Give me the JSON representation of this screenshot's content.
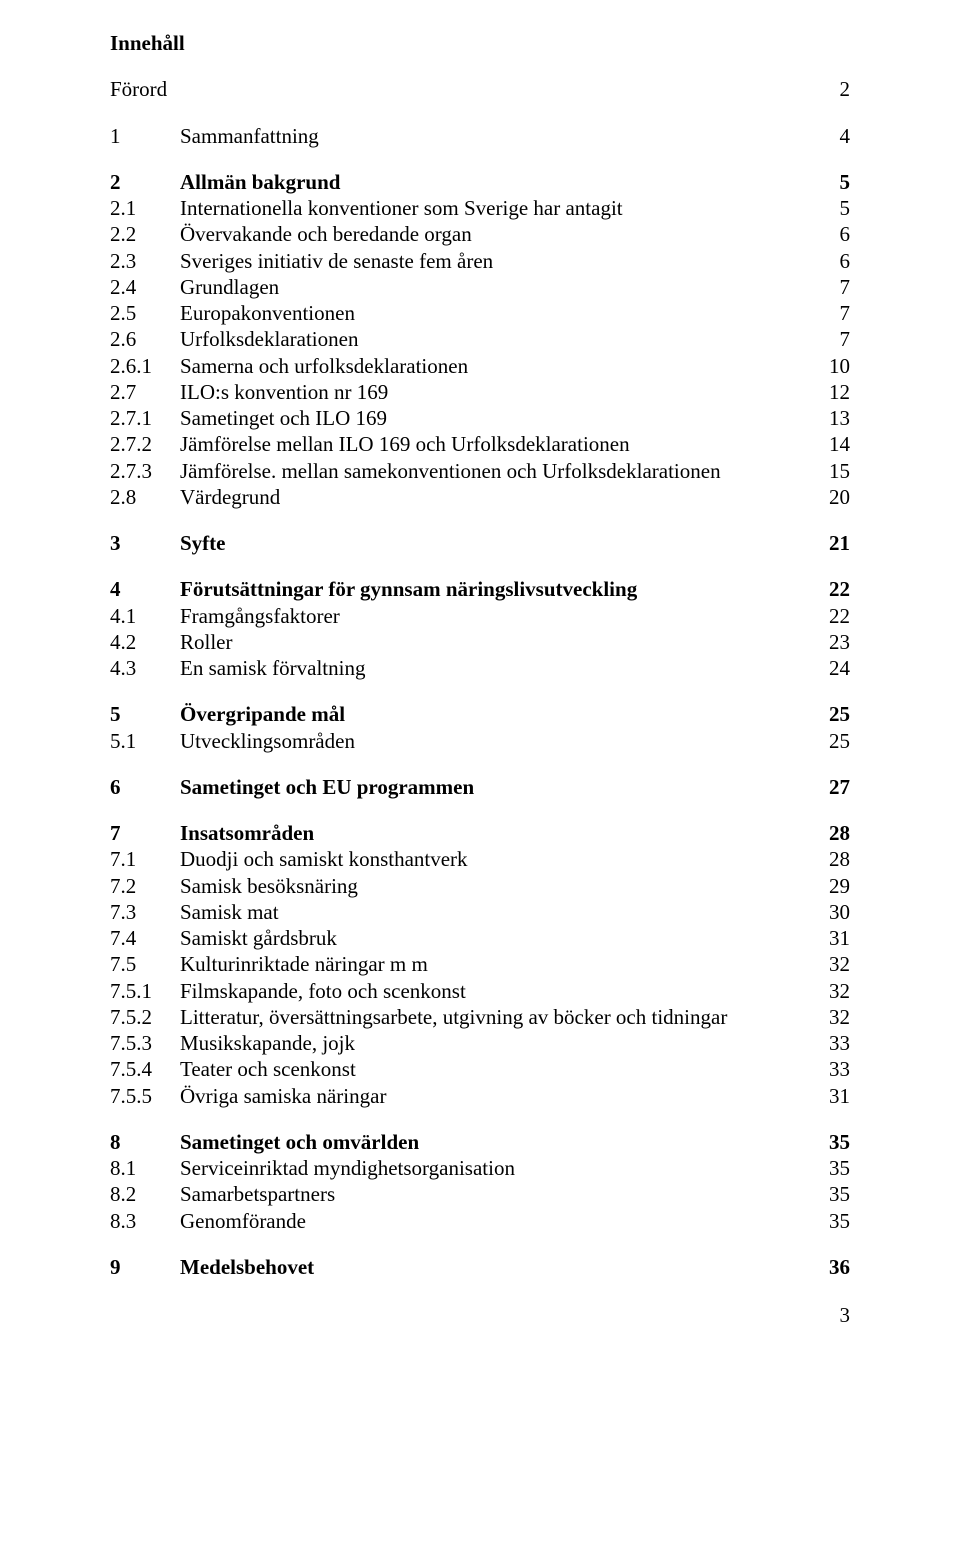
{
  "title": "Innehåll",
  "page_number": "3",
  "entries": [
    {
      "num": "",
      "label": "Förord",
      "page": "2",
      "bold": false,
      "gap_before": false,
      "forord": true
    },
    {
      "num": "1",
      "label": "Sammanfattning",
      "page": "4",
      "bold": false,
      "gap_before": true
    },
    {
      "num": "2",
      "label": "Allmän bakgrund",
      "page": "5",
      "bold": true,
      "gap_before": true
    },
    {
      "num": "2.1",
      "label": "Internationella konventioner som Sverige har antagit",
      "page": "5",
      "bold": false
    },
    {
      "num": "2.2",
      "label": "Övervakande och beredande organ",
      "page": "6",
      "bold": false
    },
    {
      "num": "2.3",
      "label": "Sveriges initiativ de senaste fem åren",
      "page": "6",
      "bold": false
    },
    {
      "num": "2.4",
      "label": "Grundlagen",
      "page": "7",
      "bold": false
    },
    {
      "num": "2.5",
      "label": "Europakonventionen",
      "page": "7",
      "bold": false
    },
    {
      "num": "2.6",
      "label": "Urfolksdeklarationen",
      "page": "7",
      "bold": false
    },
    {
      "num": "2.6.1",
      "label": "Samerna och urfolksdeklarationen",
      "page": "10",
      "bold": false
    },
    {
      "num": "2.7",
      "label": "ILO:s konvention nr 169",
      "page": "12",
      "bold": false
    },
    {
      "num": "2.7.1",
      "label": "Sametinget och ILO 169",
      "page": "13",
      "bold": false
    },
    {
      "num": "2.7.2",
      "label": "Jämförelse mellan ILO 169 och Urfolksdeklarationen",
      "page": "14",
      "bold": false
    },
    {
      "num": "2.7.3",
      "label": "Jämförelse. mellan samekonventionen och Urfolksdeklarationen",
      "page": "15",
      "bold": false
    },
    {
      "num": "2.8",
      "label": "Värdegrund",
      "page": "20",
      "bold": false
    },
    {
      "num": "3",
      "label": "Syfte",
      "page": "21",
      "bold": true,
      "gap_before": true
    },
    {
      "num": "4",
      "label": "Förutsättningar för gynnsam näringslivsutveckling",
      "page": "22",
      "bold": true,
      "gap_before": true
    },
    {
      "num": "4.1",
      "label": "Framgångsfaktorer",
      "page": "22",
      "bold": false
    },
    {
      "num": "4.2",
      "label": "Roller",
      "page": "23",
      "bold": false
    },
    {
      "num": "4.3",
      "label": "En samisk förvaltning",
      "page": "24",
      "bold": false
    },
    {
      "num": "5",
      "label": "Övergripande mål",
      "page": "25",
      "bold": true,
      "gap_before": true
    },
    {
      "num": "5.1",
      "label": "Utvecklingsområden",
      "page": "25",
      "bold": false
    },
    {
      "num": "6",
      "label": "Sametinget och EU programmen",
      "page": "27",
      "bold": true,
      "gap_before": true
    },
    {
      "num": "7",
      "label": "Insatsområden",
      "page": "28",
      "bold": true,
      "gap_before": true
    },
    {
      "num": "7.1",
      "label": "Duodji och samiskt konsthantverk",
      "page": "28",
      "bold": false
    },
    {
      "num": "7.2",
      "label": "Samisk besöksnäring",
      "page": "29",
      "bold": false
    },
    {
      "num": "7.3",
      "label": "Samisk mat",
      "page": "30",
      "bold": false
    },
    {
      "num": "7.4",
      "label": "Samiskt gårdsbruk",
      "page": "31",
      "bold": false
    },
    {
      "num": "7.5",
      "label": "Kulturinriktade näringar m m",
      "page": "32",
      "bold": false
    },
    {
      "num": "7.5.1",
      "label": "Filmskapande, foto och scenkonst",
      "page": "32",
      "bold": false
    },
    {
      "num": "7.5.2",
      "label": "Litteratur, översättningsarbete, utgivning av böcker och tidningar",
      "page": "32",
      "bold": false
    },
    {
      "num": "7.5.3",
      "label": "Musikskapande, jojk",
      "page": "33",
      "bold": false
    },
    {
      "num": "7.5.4",
      "label": "Teater och scenkonst",
      "page": "33",
      "bold": false
    },
    {
      "num": "7.5.5",
      "label": "Övriga samiska näringar",
      "page": "31",
      "bold": false
    },
    {
      "num": "8",
      "label": "Sametinget och omvärlden",
      "page": "35",
      "bold": true,
      "gap_before": true
    },
    {
      "num": "8.1",
      "label": "Serviceinriktad myndighetsorganisation",
      "page": "35",
      "bold": false
    },
    {
      "num": "8.2",
      "label": "Samarbetspartners",
      "page": "35",
      "bold": false
    },
    {
      "num": "8.3",
      "label": "Genomförande",
      "page": "35",
      "bold": false
    },
    {
      "num": "9",
      "label": "Medelsbehovet",
      "page": "36",
      "bold": true,
      "gap_before": true
    }
  ]
}
